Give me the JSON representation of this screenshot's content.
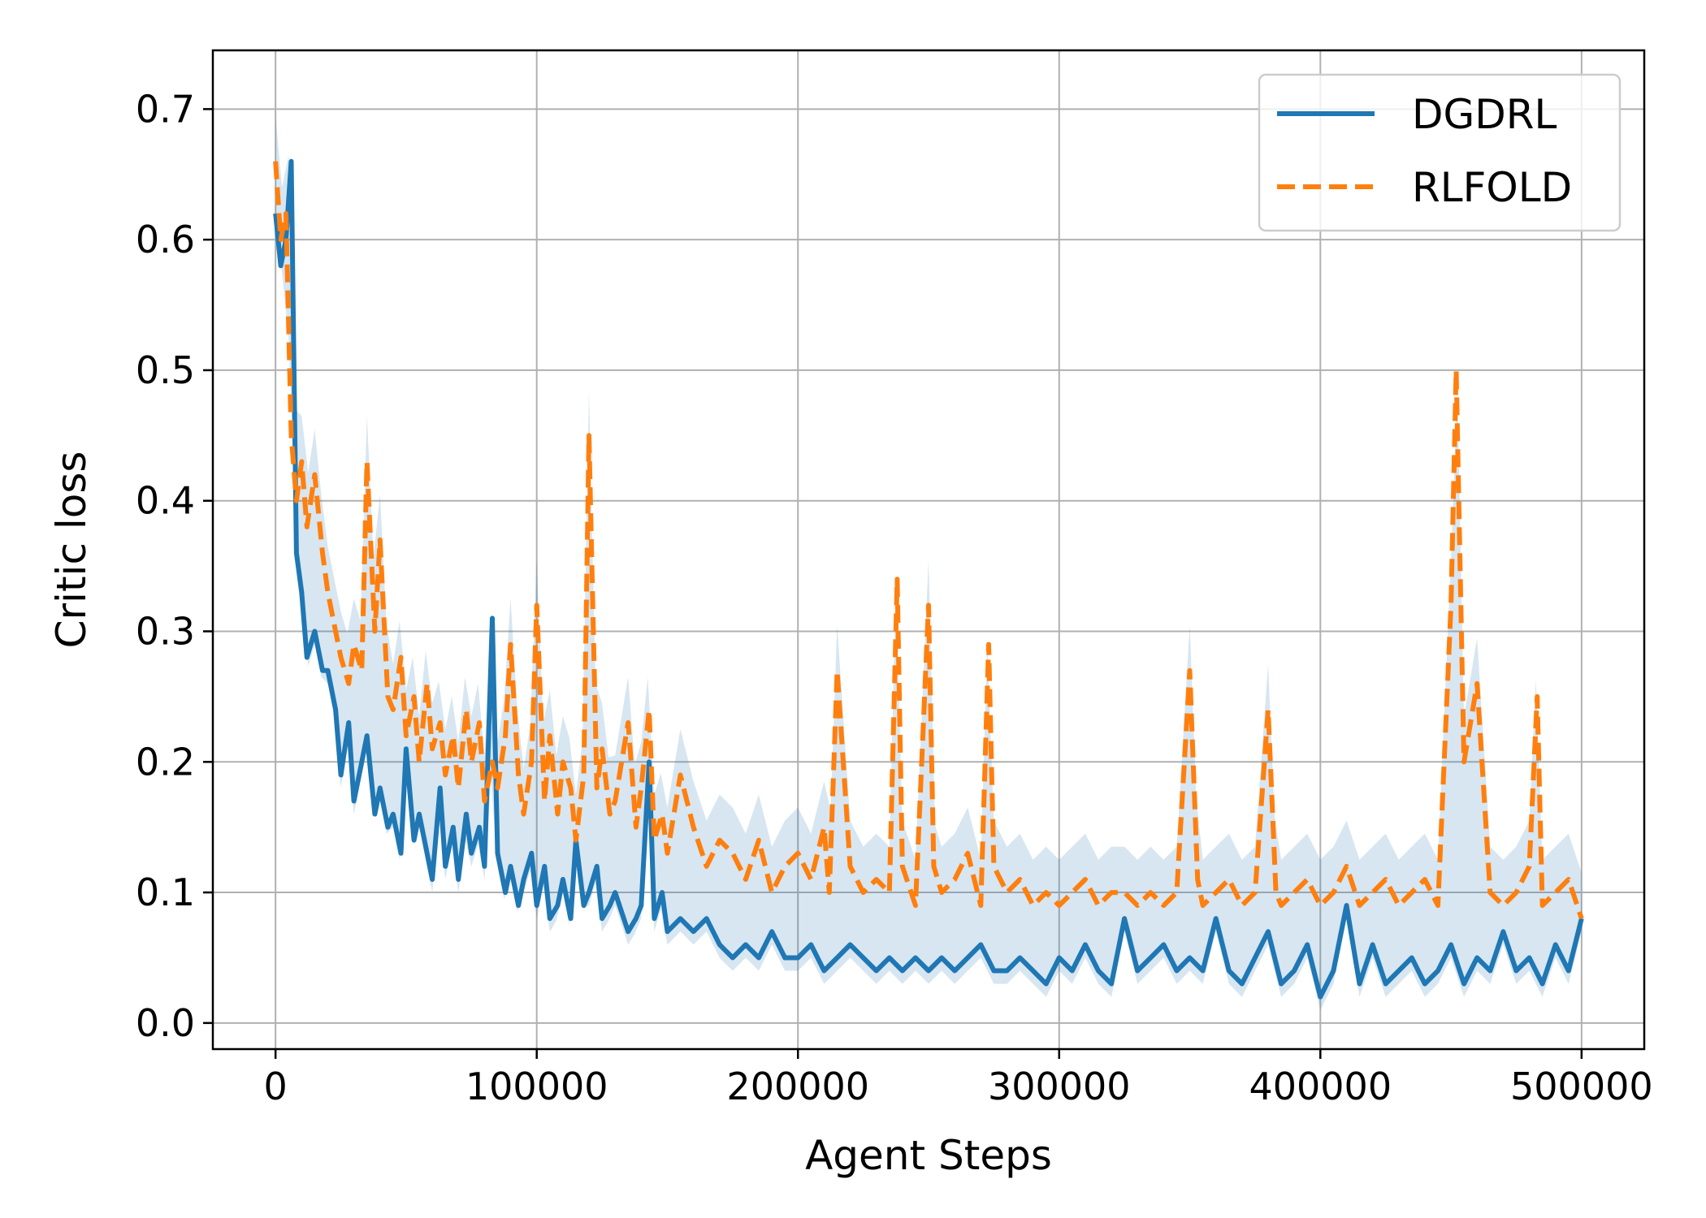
{
  "chart_data": {
    "type": "line",
    "title": "",
    "xlabel": "Agent Steps",
    "ylabel": "Critic loss",
    "xlim": [
      -24000,
      524000
    ],
    "ylim": [
      -0.02,
      0.745
    ],
    "x_ticks": [
      0,
      100000,
      200000,
      300000,
      400000,
      500000
    ],
    "x_tick_labels": [
      "0",
      "100000",
      "200000",
      "300000",
      "400000",
      "500000"
    ],
    "y_ticks": [
      0.0,
      0.1,
      0.2,
      0.3,
      0.4,
      0.5,
      0.6,
      0.7
    ],
    "y_tick_labels": [
      "0.0",
      "0.1",
      "0.2",
      "0.3",
      "0.4",
      "0.5",
      "0.6",
      "0.7"
    ],
    "grid": true,
    "legend_position": "top-right",
    "series": [
      {
        "name": "DGDRL",
        "color": "#1f77b4",
        "style": "solid",
        "x": [
          0,
          2000,
          4000,
          6000,
          8000,
          10000,
          12000,
          15000,
          18000,
          20000,
          23000,
          25000,
          28000,
          30000,
          33000,
          35000,
          38000,
          40000,
          43000,
          45000,
          48000,
          50000,
          53000,
          55000,
          58000,
          60000,
          63000,
          65000,
          68000,
          70000,
          73000,
          75000,
          78000,
          80000,
          83000,
          85000,
          88000,
          90000,
          93000,
          95000,
          98000,
          100000,
          103000,
          105000,
          108000,
          110000,
          113000,
          115000,
          118000,
          120000,
          123000,
          125000,
          128000,
          130000,
          135000,
          138000,
          140000,
          143000,
          145000,
          148000,
          150000,
          155000,
          160000,
          165000,
          170000,
          175000,
          180000,
          185000,
          190000,
          195000,
          200000,
          205000,
          210000,
          215000,
          220000,
          225000,
          230000,
          235000,
          240000,
          245000,
          250000,
          255000,
          260000,
          265000,
          270000,
          275000,
          280000,
          285000,
          290000,
          295000,
          300000,
          305000,
          310000,
          315000,
          320000,
          325000,
          330000,
          335000,
          340000,
          345000,
          350000,
          355000,
          360000,
          365000,
          370000,
          375000,
          380000,
          385000,
          390000,
          395000,
          400000,
          405000,
          410000,
          415000,
          420000,
          425000,
          430000,
          435000,
          440000,
          445000,
          450000,
          455000,
          460000,
          465000,
          470000,
          475000,
          480000,
          485000,
          490000,
          495000,
          500000
        ],
        "values": [
          0.62,
          0.58,
          0.6,
          0.66,
          0.36,
          0.33,
          0.28,
          0.3,
          0.27,
          0.27,
          0.24,
          0.19,
          0.23,
          0.17,
          0.2,
          0.22,
          0.16,
          0.18,
          0.15,
          0.16,
          0.13,
          0.21,
          0.14,
          0.16,
          0.13,
          0.11,
          0.18,
          0.12,
          0.15,
          0.11,
          0.16,
          0.13,
          0.15,
          0.12,
          0.31,
          0.13,
          0.1,
          0.12,
          0.09,
          0.11,
          0.13,
          0.09,
          0.12,
          0.08,
          0.09,
          0.11,
          0.08,
          0.14,
          0.09,
          0.1,
          0.12,
          0.08,
          0.09,
          0.1,
          0.07,
          0.08,
          0.09,
          0.2,
          0.08,
          0.1,
          0.07,
          0.08,
          0.07,
          0.08,
          0.06,
          0.05,
          0.06,
          0.05,
          0.07,
          0.05,
          0.05,
          0.06,
          0.04,
          0.05,
          0.06,
          0.05,
          0.04,
          0.05,
          0.04,
          0.05,
          0.04,
          0.05,
          0.04,
          0.05,
          0.06,
          0.04,
          0.04,
          0.05,
          0.04,
          0.03,
          0.05,
          0.04,
          0.06,
          0.04,
          0.03,
          0.08,
          0.04,
          0.05,
          0.06,
          0.04,
          0.05,
          0.04,
          0.08,
          0.04,
          0.03,
          0.05,
          0.07,
          0.03,
          0.04,
          0.06,
          0.02,
          0.04,
          0.09,
          0.03,
          0.06,
          0.03,
          0.04,
          0.05,
          0.03,
          0.04,
          0.06,
          0.03,
          0.05,
          0.04,
          0.07,
          0.04,
          0.05,
          0.03,
          0.06,
          0.04,
          0.08
        ]
      },
      {
        "name": "RLFOLD",
        "color": "#ff7f0e",
        "style": "dashed",
        "x": [
          0,
          2000,
          4000,
          6000,
          8000,
          10000,
          12000,
          15000,
          18000,
          20000,
          23000,
          25000,
          28000,
          30000,
          33000,
          35000,
          38000,
          40000,
          43000,
          45000,
          48000,
          50000,
          53000,
          55000,
          58000,
          60000,
          63000,
          65000,
          68000,
          70000,
          73000,
          75000,
          78000,
          80000,
          83000,
          85000,
          88000,
          90000,
          93000,
          95000,
          98000,
          100000,
          103000,
          105000,
          108000,
          110000,
          113000,
          115000,
          118000,
          120000,
          123000,
          125000,
          128000,
          130000,
          135000,
          138000,
          140000,
          143000,
          145000,
          148000,
          150000,
          155000,
          160000,
          165000,
          170000,
          175000,
          180000,
          185000,
          190000,
          195000,
          200000,
          205000,
          210000,
          212000,
          215000,
          220000,
          225000,
          230000,
          235000,
          238000,
          240000,
          245000,
          250000,
          252000,
          255000,
          260000,
          265000,
          270000,
          273000,
          275000,
          280000,
          285000,
          290000,
          295000,
          300000,
          305000,
          310000,
          315000,
          320000,
          325000,
          330000,
          335000,
          340000,
          345000,
          350000,
          353000,
          355000,
          360000,
          365000,
          370000,
          375000,
          380000,
          383000,
          385000,
          390000,
          395000,
          400000,
          405000,
          410000,
          415000,
          420000,
          425000,
          430000,
          435000,
          440000,
          445000,
          450000,
          452000,
          455000,
          460000,
          465000,
          470000,
          475000,
          480000,
          483000,
          485000,
          490000,
          495000,
          500000
        ],
        "values": [
          0.66,
          0.6,
          0.62,
          0.45,
          0.4,
          0.43,
          0.38,
          0.42,
          0.36,
          0.33,
          0.3,
          0.28,
          0.26,
          0.29,
          0.27,
          0.43,
          0.3,
          0.37,
          0.25,
          0.24,
          0.28,
          0.22,
          0.25,
          0.2,
          0.26,
          0.21,
          0.23,
          0.19,
          0.22,
          0.18,
          0.24,
          0.2,
          0.23,
          0.17,
          0.2,
          0.18,
          0.22,
          0.29,
          0.19,
          0.16,
          0.2,
          0.32,
          0.17,
          0.22,
          0.16,
          0.2,
          0.18,
          0.14,
          0.19,
          0.45,
          0.18,
          0.21,
          0.16,
          0.17,
          0.23,
          0.15,
          0.18,
          0.24,
          0.14,
          0.16,
          0.13,
          0.19,
          0.15,
          0.12,
          0.14,
          0.13,
          0.11,
          0.14,
          0.1,
          0.12,
          0.13,
          0.11,
          0.15,
          0.1,
          0.27,
          0.12,
          0.1,
          0.11,
          0.1,
          0.34,
          0.12,
          0.09,
          0.32,
          0.12,
          0.1,
          0.11,
          0.13,
          0.09,
          0.29,
          0.12,
          0.1,
          0.11,
          0.09,
          0.1,
          0.09,
          0.1,
          0.11,
          0.09,
          0.1,
          0.1,
          0.09,
          0.1,
          0.09,
          0.1,
          0.27,
          0.11,
          0.09,
          0.1,
          0.11,
          0.09,
          0.1,
          0.24,
          0.1,
          0.09,
          0.1,
          0.11,
          0.09,
          0.1,
          0.12,
          0.09,
          0.1,
          0.11,
          0.09,
          0.1,
          0.11,
          0.09,
          0.32,
          0.5,
          0.2,
          0.26,
          0.1,
          0.09,
          0.1,
          0.12,
          0.25,
          0.09,
          0.1,
          0.11,
          0.08
        ]
      }
    ],
    "band": {
      "color": "#1f77b4",
      "opacity": 0.18,
      "description_series": "DGDRL"
    }
  },
  "legend": {
    "items": [
      {
        "label": "DGDRL",
        "color": "#1f77b4",
        "style": "solid"
      },
      {
        "label": "RLFOLD",
        "color": "#ff7f0e",
        "style": "dashed"
      }
    ]
  }
}
